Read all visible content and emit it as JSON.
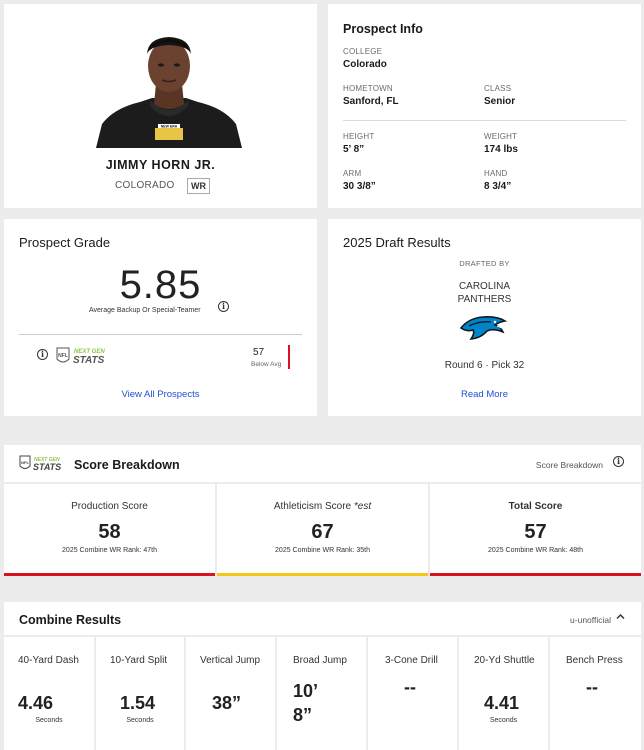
{
  "player": {
    "name": "JIMMY HORN JR.",
    "college": "COLORADO",
    "position": "WR"
  },
  "prospect_info": {
    "title": "Prospect Info",
    "college_label": "COLLEGE",
    "college": "Colorado",
    "hometown_label": "HOMETOWN",
    "hometown": "Sanford, FL",
    "class_label": "CLASS",
    "class": "Senior",
    "height_label": "HEIGHT",
    "height": "5’ 8”",
    "weight_label": "WEIGHT",
    "weight": "174 lbs",
    "arm_label": "ARM",
    "arm": "30 3/8”",
    "hand_label": "HAND",
    "hand": "8 3/4”"
  },
  "grade": {
    "title": "Prospect Grade",
    "value": "5.85",
    "description": "Average Backup Or Special-Teamer",
    "ngs_value": "57",
    "ngs_sub": "Below Avg",
    "link": "View All Prospects"
  },
  "draft": {
    "title": "2025 Draft Results",
    "drafted_by": "DRAFTED BY",
    "team_line1": "CAROLINA",
    "team_line2": "PANTHERS",
    "pick": "Round 6 · Pick 32",
    "link": "Read More"
  },
  "score_breakdown": {
    "title": "Score Breakdown",
    "right_label": "Score Breakdown",
    "logo_text_1": "NEXT GEN",
    "logo_text_2": "STATS",
    "boxes": [
      {
        "label": "Production Score",
        "value": "58",
        "rank": "2025 Combine WR Rank: 47th",
        "color": "#d8121f"
      },
      {
        "label": "Athleticism Score *est",
        "value": "67",
        "rank": "2025 Combine WR Rank: 35th",
        "color": "#f5c518"
      },
      {
        "label": "Total Score",
        "value": "57",
        "rank": "2025 Combine WR Rank: 48th",
        "color": "#d8121f"
      }
    ]
  },
  "combine": {
    "title": "Combine Results",
    "right_label": "u-unofficial",
    "items": [
      {
        "label": "40-Yard Dash",
        "value": "4.46",
        "unit": "Seconds"
      },
      {
        "label": "10-Yard Split",
        "value": "1.54",
        "unit": "Seconds"
      },
      {
        "label": "Vertical Jump",
        "value": "38”",
        "unit": ""
      },
      {
        "label": "Broad Jump",
        "value": "10’ 8”",
        "unit": ""
      },
      {
        "label": "3-Cone Drill",
        "value": "--",
        "unit": ""
      },
      {
        "label": "20-Yd Shuttle",
        "value": "4.41",
        "unit": "Seconds"
      },
      {
        "label": "Bench Press",
        "value": "--",
        "unit": ""
      }
    ]
  }
}
